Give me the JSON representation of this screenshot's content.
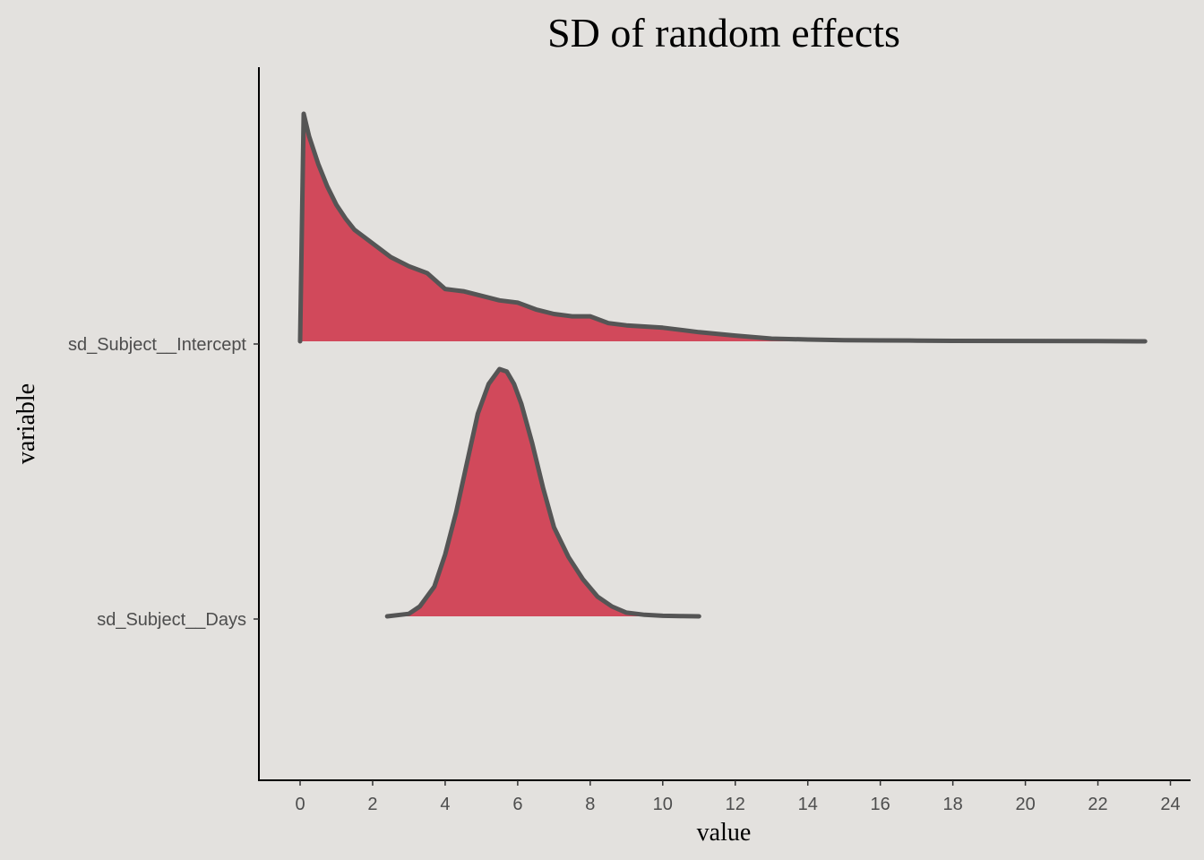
{
  "chart_data": {
    "type": "area",
    "subtype": "ridgeline-density",
    "title": "SD of random effects",
    "xlabel": "value",
    "ylabel": "variable",
    "xlim": [
      -1.1,
      24.5
    ],
    "x_ticks": [
      0,
      2,
      4,
      6,
      8,
      10,
      12,
      14,
      16,
      18,
      20,
      22,
      24
    ],
    "categories": [
      "sd_Subject__Intercept",
      "sd_Subject__Days"
    ],
    "grid": false,
    "legend": "none",
    "fill_color": "#d1495b",
    "line_color": "#555555",
    "background": "#e3e1de",
    "series": [
      {
        "name": "sd_Subject__Intercept",
        "x": [
          0,
          0.1,
          0.25,
          0.5,
          0.75,
          1,
          1.25,
          1.5,
          2,
          2.5,
          3,
          3.5,
          4,
          4.5,
          5,
          5.5,
          6,
          6.5,
          7,
          7.5,
          8,
          8.5,
          9,
          10,
          11,
          12,
          13,
          14,
          15,
          16,
          17,
          18,
          20,
          22,
          23.3
        ],
        "y": [
          0,
          1.0,
          0.9,
          0.78,
          0.68,
          0.6,
          0.54,
          0.49,
          0.43,
          0.37,
          0.33,
          0.3,
          0.23,
          0.22,
          0.2,
          0.18,
          0.17,
          0.14,
          0.12,
          0.11,
          0.11,
          0.08,
          0.07,
          0.06,
          0.04,
          0.025,
          0.012,
          0.008,
          0.005,
          0.004,
          0.003,
          0.002,
          0.0015,
          0.001,
          0
        ]
      },
      {
        "name": "sd_Subject__Days",
        "x": [
          2.4,
          3.0,
          3.3,
          3.7,
          4.0,
          4.3,
          4.6,
          4.9,
          5.2,
          5.5,
          5.7,
          5.9,
          6.1,
          6.4,
          6.7,
          7.0,
          7.4,
          7.8,
          8.2,
          8.6,
          9.0,
          9.5,
          10.0,
          10.5,
          11.0
        ],
        "y": [
          0,
          0.01,
          0.04,
          0.12,
          0.25,
          0.42,
          0.62,
          0.82,
          0.94,
          1.0,
          0.99,
          0.94,
          0.86,
          0.7,
          0.52,
          0.36,
          0.24,
          0.15,
          0.08,
          0.04,
          0.015,
          0.006,
          0.002,
          0.001,
          0
        ]
      }
    ]
  }
}
